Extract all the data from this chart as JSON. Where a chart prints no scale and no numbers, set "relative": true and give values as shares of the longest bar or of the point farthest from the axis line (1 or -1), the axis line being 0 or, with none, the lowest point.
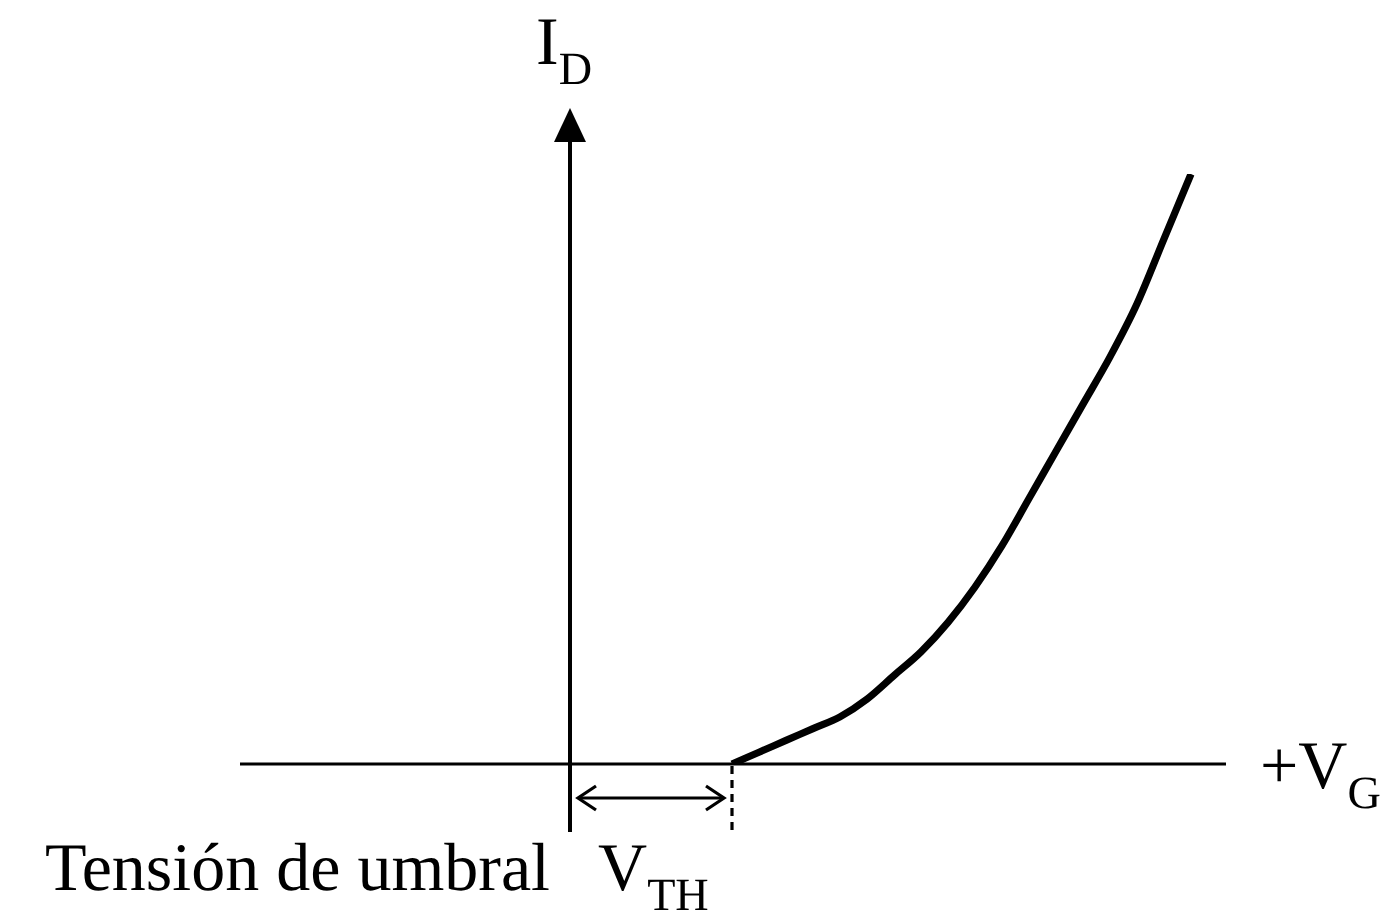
{
  "chart_data": {
    "type": "line",
    "xlabel": "+V$_{G}$",
    "ylabel": "I$_{D}$",
    "annotations": [
      "Tensión de umbral",
      "V$_{TH}$"
    ],
    "categories": [
      null,
      null,
      null,
      null,
      null,
      null,
      null,
      null,
      null,
      null,
      null,
      null,
      null,
      null,
      null,
      null,
      null,
      null,
      null,
      null,
      null,
      null,
      null,
      null,
      null
    ],
    "series": [
      {
        "color": "#000000",
        "values": [
          null,
          null,
          null,
          null,
          null,
          null,
          0,
          0.02,
          0.04,
          0.06,
          0.08,
          0.11,
          0.15,
          0.19,
          0.24,
          0.3,
          0.37,
          0.45,
          0.53,
          0.61,
          0.69,
          0.78,
          0.89,
          1,
          null
        ]
      }
    ],
    "relative": true,
    "marker": "none",
    "line_style": "solid"
  }
}
